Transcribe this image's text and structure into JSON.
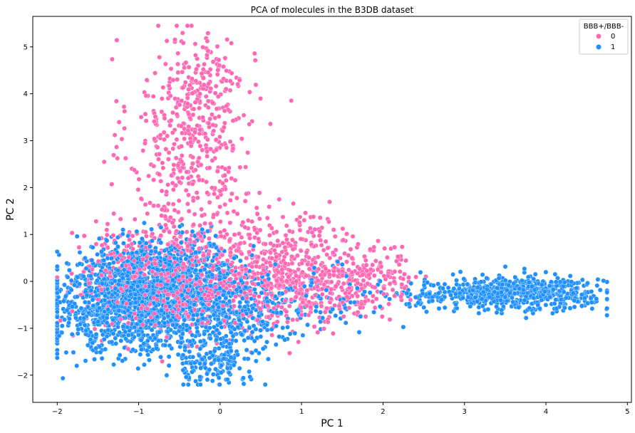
{
  "chart_data": {
    "type": "scatter",
    "title": "PCA of molecules in the B3DB dataset",
    "xlabel": "PC 1",
    "ylabel": "PC 2",
    "xlim": [
      -2.3,
      5.05
    ],
    "ylim": [
      -2.58,
      5.65
    ],
    "x_ticks": [
      -2,
      -1,
      0,
      1,
      2,
      3,
      4,
      5
    ],
    "y_ticks": [
      -2,
      -1,
      0,
      1,
      2,
      3,
      4,
      5
    ],
    "grid": false,
    "legend": {
      "title": "BBB+/BBB-",
      "position": "top-right",
      "entries": [
        "0",
        "1"
      ]
    },
    "series": [
      {
        "name": "0",
        "color": "#ff69b4",
        "clusters": [
          {
            "cx": -0.35,
            "cy": 3.0,
            "sx": 0.38,
            "sy": 1.1,
            "n": 420
          },
          {
            "cx": -0.15,
            "cy": 4.3,
            "sx": 0.22,
            "sy": 0.45,
            "n": 90
          },
          {
            "cx": -0.6,
            "cy": 0.1,
            "sx": 0.55,
            "sy": 0.55,
            "n": 800
          },
          {
            "cx": 0.6,
            "cy": 0.0,
            "sx": 0.45,
            "sy": 0.5,
            "n": 350
          },
          {
            "cx": 1.35,
            "cy": -0.1,
            "sx": 0.45,
            "sy": 0.45,
            "n": 300
          },
          {
            "cx": 2.0,
            "cy": 0.1,
            "sx": 0.22,
            "sy": 0.35,
            "n": 60
          },
          {
            "cx": 0.8,
            "cy": 1.05,
            "sx": 0.55,
            "sy": 0.25,
            "n": 80
          }
        ]
      },
      {
        "name": "1",
        "color": "#1e90ff",
        "clusters": [
          {
            "cx": -1.1,
            "cy": -0.45,
            "sx": 0.5,
            "sy": 0.55,
            "n": 1100
          },
          {
            "cx": -0.6,
            "cy": 0.0,
            "sx": 0.45,
            "sy": 0.45,
            "n": 700
          },
          {
            "cx": -0.1,
            "cy": -1.7,
            "sx": 0.28,
            "sy": 0.28,
            "n": 180
          },
          {
            "cx": 0.15,
            "cy": -0.7,
            "sx": 0.35,
            "sy": 0.4,
            "n": 250
          },
          {
            "cx": 3.8,
            "cy": -0.25,
            "sx": 0.45,
            "sy": 0.18,
            "n": 520
          },
          {
            "cx": 2.8,
            "cy": -0.3,
            "sx": 0.35,
            "sy": 0.15,
            "n": 130
          },
          {
            "cx": 1.2,
            "cy": -0.4,
            "sx": 0.5,
            "sy": 0.35,
            "n": 90
          }
        ]
      }
    ]
  }
}
